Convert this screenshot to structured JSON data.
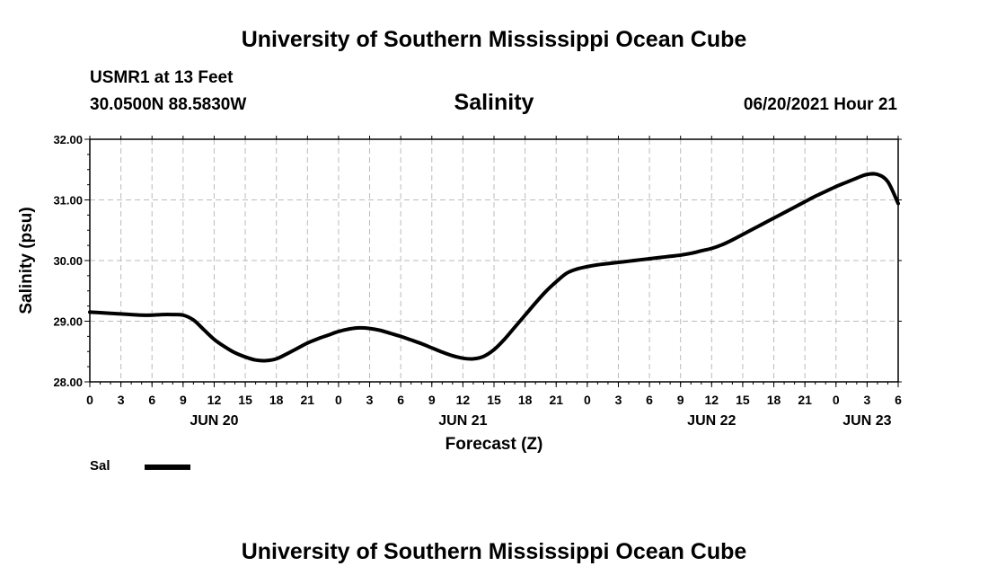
{
  "header": {
    "title": "University of Southern Mississippi Ocean Cube",
    "station": "USMR1 at 13 Feet",
    "coords": "30.0500N  88.5830W",
    "datetime": "06/20/2021 Hour 21",
    "footer_title": "University of Southern Mississippi Ocean Cube"
  },
  "legend": {
    "label": "Sal"
  },
  "colors": {
    "line": "#000000",
    "grid": "#bbbbbb"
  },
  "chart_data": {
    "type": "line",
    "title": "Salinity",
    "xlabel": "Forecast (Z)",
    "ylabel": "Salinity (psu)",
    "xlim": [
      0,
      78
    ],
    "ylim": [
      28.0,
      32.0
    ],
    "y_ticks": [
      "28.00",
      "29.00",
      "30.00",
      "31.00",
      "32.00"
    ],
    "x_tick_hours": [
      0,
      3,
      6,
      9,
      12,
      15,
      18,
      21,
      24,
      27,
      30,
      33,
      36,
      39,
      42,
      45,
      48,
      51,
      54,
      57,
      60,
      63,
      66,
      69,
      72,
      75,
      78
    ],
    "x_tick_labels": [
      "0",
      "3",
      "6",
      "9",
      "12",
      "15",
      "18",
      "21",
      "0",
      "3",
      "6",
      "9",
      "12",
      "15",
      "18",
      "21",
      "0",
      "3",
      "6",
      "9",
      "12",
      "15",
      "18",
      "21",
      "0",
      "3",
      "6"
    ],
    "date_labels": [
      {
        "hour": 12,
        "label": "JUN 20"
      },
      {
        "hour": 36,
        "label": "JUN 21"
      },
      {
        "hour": 60,
        "label": "JUN 22"
      },
      {
        "hour": 75,
        "label": "JUN 23"
      }
    ],
    "series": [
      {
        "name": "Sal",
        "x": [
          0,
          1,
          2,
          3,
          4,
          5,
          6,
          7,
          8,
          9,
          10,
          11,
          12,
          13,
          14,
          15,
          16,
          17,
          18,
          19,
          20,
          21,
          22,
          23,
          24,
          25,
          26,
          27,
          28,
          29,
          30,
          31,
          32,
          33,
          34,
          35,
          36,
          37,
          38,
          39,
          40,
          41,
          42,
          43,
          44,
          45,
          46,
          47,
          48,
          49,
          50,
          51,
          52,
          53,
          54,
          55,
          56,
          57,
          58,
          59,
          60,
          61,
          62,
          63,
          64,
          65,
          66,
          67,
          68,
          69,
          70,
          71,
          72,
          73,
          74,
          75,
          76,
          77,
          78
        ],
        "values": [
          29.15,
          29.14,
          29.13,
          29.12,
          29.11,
          29.1,
          29.1,
          29.11,
          29.11,
          29.1,
          29.02,
          28.86,
          28.7,
          28.58,
          28.48,
          28.41,
          28.36,
          28.35,
          28.38,
          28.46,
          28.55,
          28.64,
          28.71,
          28.77,
          28.83,
          28.87,
          28.89,
          28.88,
          28.85,
          28.8,
          28.75,
          28.69,
          28.63,
          28.56,
          28.49,
          28.43,
          28.39,
          28.38,
          28.42,
          28.53,
          28.7,
          28.9,
          29.1,
          29.3,
          29.49,
          29.65,
          29.79,
          29.86,
          29.9,
          29.93,
          29.95,
          29.97,
          29.99,
          30.01,
          30.03,
          30.05,
          30.07,
          30.09,
          30.12,
          30.16,
          30.2,
          30.26,
          30.34,
          30.43,
          30.52,
          30.61,
          30.7,
          30.79,
          30.88,
          30.97,
          31.06,
          31.14,
          31.22,
          31.29,
          31.36,
          31.42,
          31.42,
          31.3,
          30.94
        ]
      }
    ]
  }
}
